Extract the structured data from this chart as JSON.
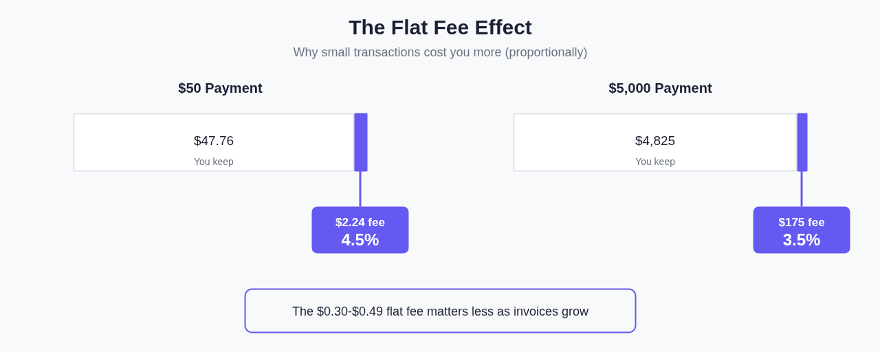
{
  "chart_data": [
    {
      "type": "other",
      "title": "The Flat Fee Effect",
      "subtitle": "Why small transactions cost you more (proportionally)",
      "annotations": [
        "The $0.30-$0.49 flat fee matters less as invoices grow"
      ]
    },
    {
      "type": "bar",
      "orientation": "horizontal",
      "stacked": true,
      "title": "$50 Payment",
      "categories": [
        null
      ],
      "series": [
        {
          "name": "You keep",
          "color": "#ffffff",
          "values": [
            47.76
          ],
          "value_labels": [
            "$47.76"
          ]
        },
        {
          "color": "#6459f0",
          "values": [
            2.24
          ],
          "value_labels": [
            "$2.24 fee"
          ]
        }
      ],
      "annotations": [
        "4.5%"
      ],
      "legend": false
    },
    {
      "type": "bar",
      "orientation": "horizontal",
      "stacked": true,
      "title": "$5,000 Payment",
      "categories": [
        null
      ],
      "series": [
        {
          "name": "You keep",
          "color": "#ffffff",
          "values": [
            4825
          ],
          "value_labels": [
            "$4,825"
          ]
        },
        {
          "color": "#6459f0",
          "values": [
            175
          ],
          "value_labels": [
            "$175 fee"
          ]
        }
      ],
      "annotations": [
        "3.5%"
      ],
      "legend": false
    }
  ]
}
